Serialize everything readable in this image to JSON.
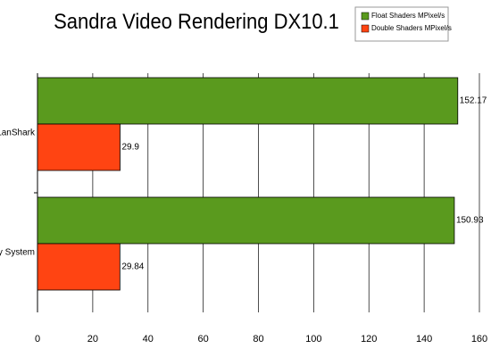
{
  "chart_data": {
    "type": "bar",
    "orientation": "horizontal",
    "title": "Sandra Video Rendering DX10.1",
    "categories": [
      "LanShark",
      "My System"
    ],
    "series": [
      {
        "name": "Float Shaders MPixel/s",
        "color": "#5a9a1e",
        "values": [
          152.17,
          150.93
        ]
      },
      {
        "name": "Double Shaders MPixel/s",
        "color": "#ff4412",
        "values": [
          29.9,
          29.84
        ]
      }
    ],
    "xlim": [
      0,
      160
    ],
    "xticks": [
      0,
      20,
      40,
      60,
      80,
      100,
      120,
      140,
      160
    ],
    "grid": true,
    "legend": "top-right"
  }
}
